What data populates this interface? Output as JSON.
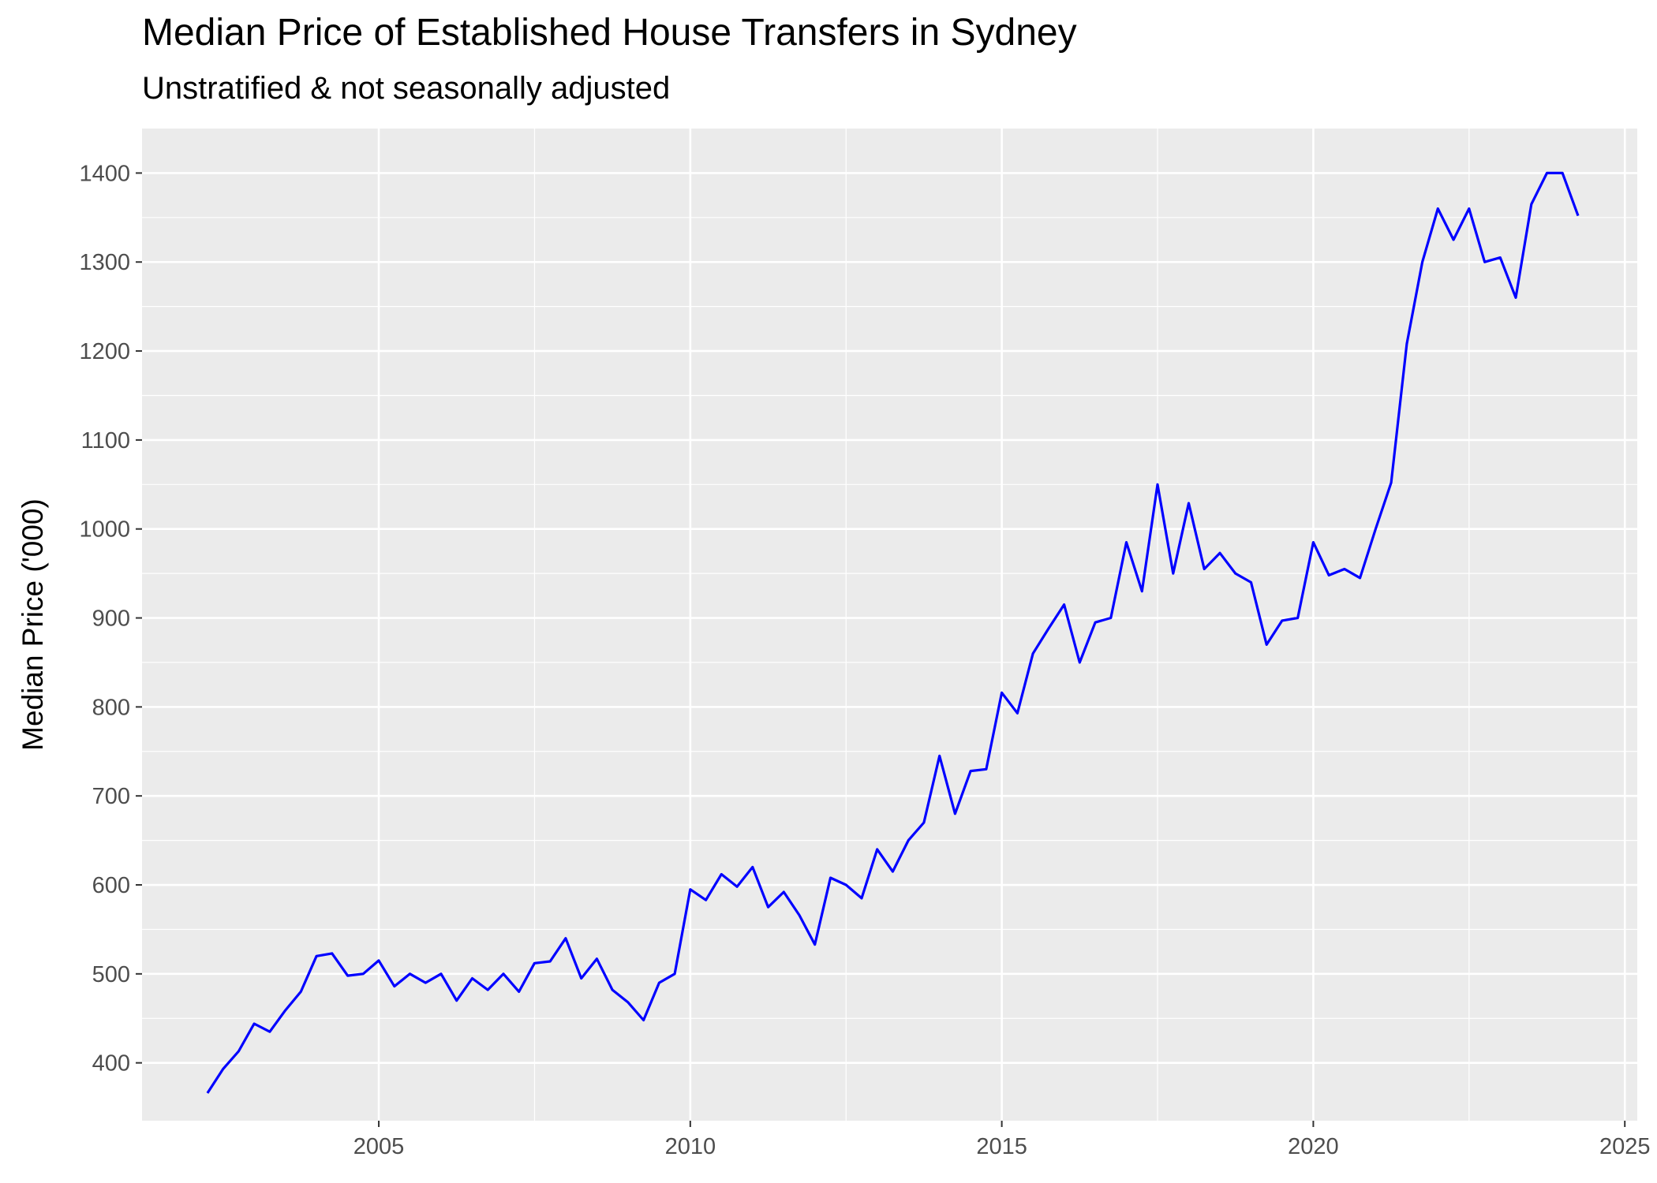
{
  "chart_data": {
    "type": "line",
    "title": "Median Price of Established House Transfers in Sydney",
    "subtitle": "Unstratified & not seasonally adjusted",
    "xlabel": "",
    "ylabel": "Median Price ('000)",
    "xlim": [
      2001.2,
      2025.2
    ],
    "ylim": [
      335,
      1450
    ],
    "x_ticks": [
      2005,
      2010,
      2015,
      2020,
      2025
    ],
    "y_ticks": [
      400,
      500,
      600,
      700,
      800,
      900,
      1000,
      1100,
      1200,
      1300,
      1400
    ],
    "grid": true,
    "legend": "none",
    "colors": {
      "line": "#0000ff",
      "panel": "#ebebeb",
      "grid": "#ffffff",
      "tick_text": "#4d4d4d",
      "tick_mark": "#333333"
    },
    "series": [
      {
        "x": [
          2002.25,
          2002.5,
          2002.75,
          2003.0,
          2003.25,
          2003.5,
          2003.75,
          2004.0,
          2004.25,
          2004.5,
          2004.75,
          2005.0,
          2005.25,
          2005.5,
          2005.75,
          2006.0,
          2006.25,
          2006.5,
          2006.75,
          2007.0,
          2007.25,
          2007.5,
          2007.75,
          2008.0,
          2008.25,
          2008.5,
          2008.75,
          2009.0,
          2009.25,
          2009.5,
          2009.75,
          2010.0,
          2010.25,
          2010.5,
          2010.75,
          2011.0,
          2011.25,
          2011.5,
          2011.75,
          2012.0,
          2012.25,
          2012.5,
          2012.75,
          2013.0,
          2013.25,
          2013.5,
          2013.75,
          2014.0,
          2014.25,
          2014.5,
          2014.75,
          2015.0,
          2015.25,
          2015.5,
          2015.75,
          2016.0,
          2016.25,
          2016.5,
          2016.75,
          2017.0,
          2017.25,
          2017.5,
          2017.75,
          2018.0,
          2018.25,
          2018.5,
          2018.75,
          2019.0,
          2019.25,
          2019.5,
          2019.75,
          2020.0,
          2020.25,
          2020.5,
          2020.75,
          2021.0,
          2021.25,
          2021.5,
          2021.75,
          2022.0,
          2022.25,
          2022.5,
          2022.75,
          2023.0,
          2023.25,
          2023.5,
          2023.75,
          2024.0,
          2024.25
        ],
        "values": [
          366,
          393,
          413,
          444,
          435,
          459,
          480,
          520,
          523,
          498,
          500,
          515,
          486,
          500,
          490,
          500,
          470,
          495,
          482,
          500,
          480,
          512,
          514,
          540,
          495,
          517,
          482,
          468,
          448,
          490,
          500,
          595,
          583,
          612,
          598,
          620,
          575,
          592,
          566,
          533,
          608,
          600,
          585,
          640,
          615,
          650,
          670,
          745,
          680,
          728,
          730,
          816,
          793,
          860,
          888,
          915,
          850,
          895,
          900,
          985,
          930,
          1050,
          950,
          1029,
          955,
          973,
          950,
          940,
          870,
          897,
          900,
          985,
          948,
          955,
          945,
          1000,
          1052,
          1208,
          1300,
          1360,
          1325,
          1360,
          1300,
          1305,
          1260,
          1365,
          1400,
          1400,
          1352
        ]
      }
    ]
  }
}
